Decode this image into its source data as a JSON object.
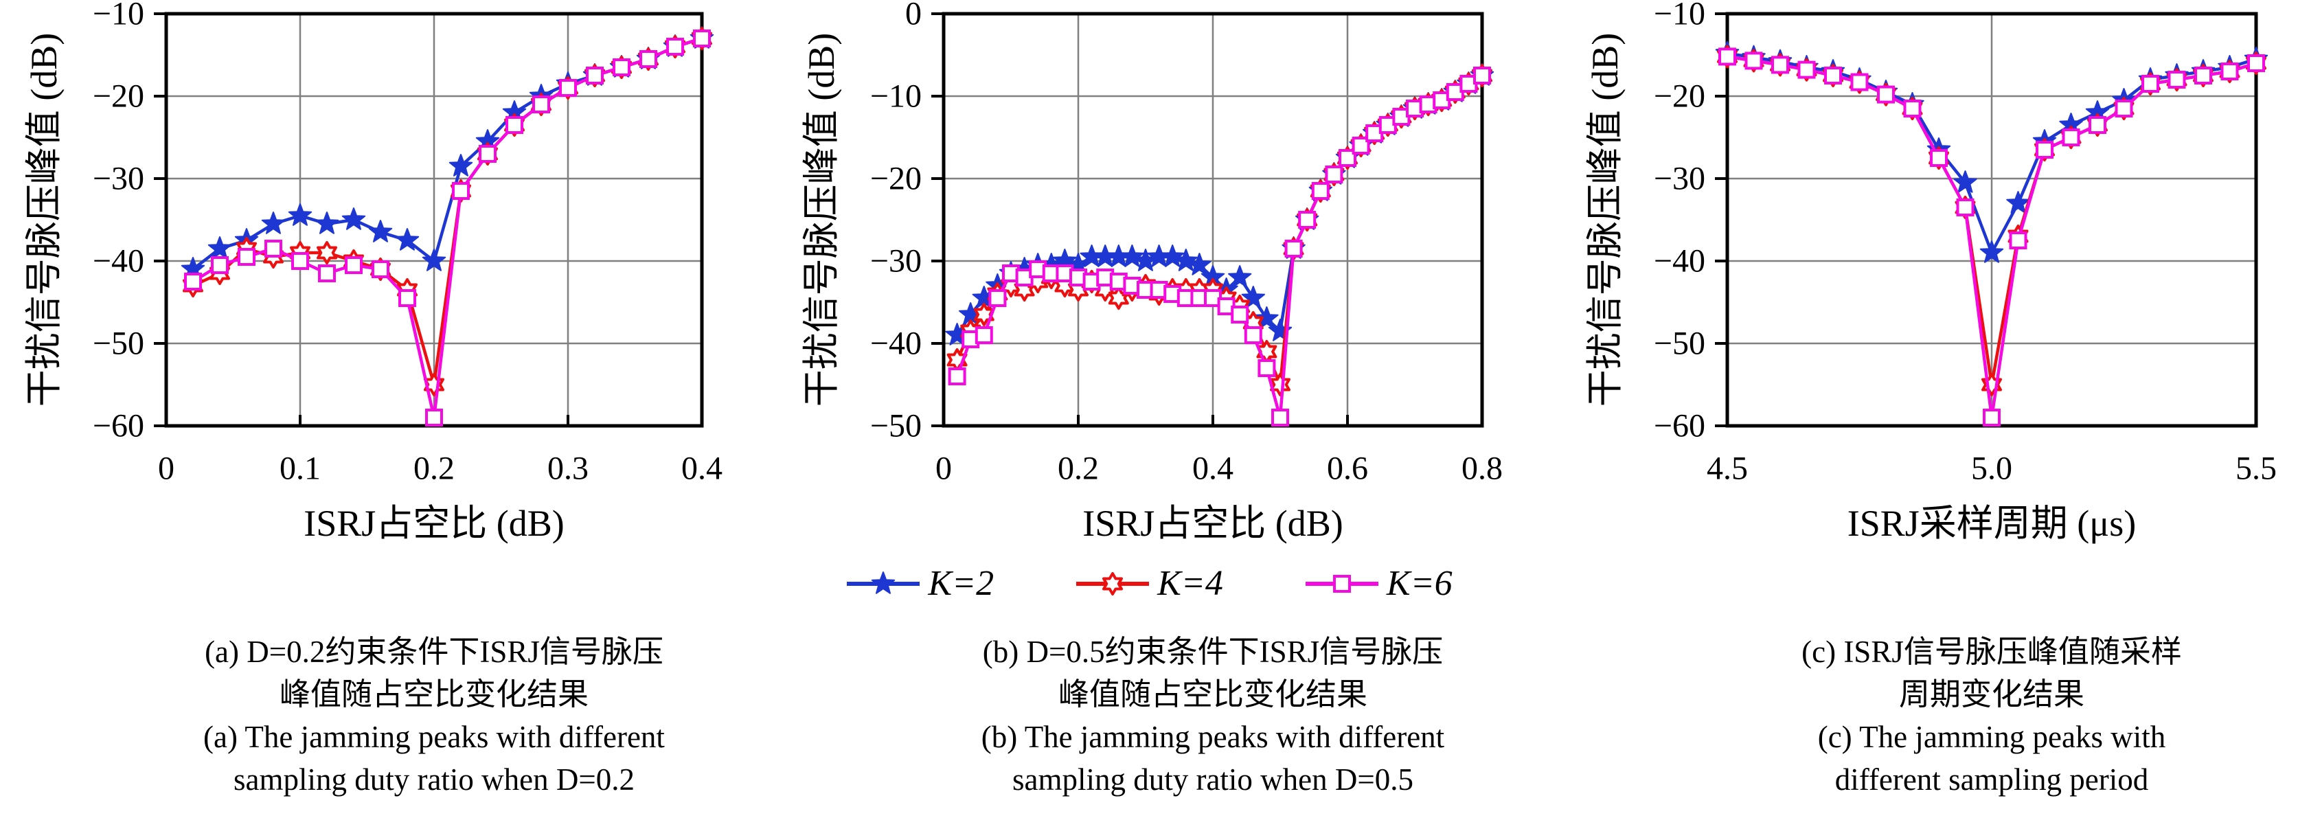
{
  "colors": {
    "k2": "#1E36D2",
    "k4": "#EC1010",
    "k6": "#F50AE1",
    "grid": "#808080",
    "axis": "#000000"
  },
  "legend": {
    "items": [
      {
        "label": "K=2",
        "color_key": "k2",
        "marker": "star5"
      },
      {
        "label": "K=4",
        "color_key": "k4",
        "marker": "star6"
      },
      {
        "label": "K=6",
        "color_key": "k6",
        "marker": "square"
      }
    ]
  },
  "chart_data": [
    {
      "type": "line",
      "panel": "a",
      "xlabel": "ISRJ占空比 (dB)",
      "ylabel": "干扰信号脉压峰值 (dB)",
      "xlim": [
        0,
        0.4
      ],
      "ylim": [
        -60,
        -10
      ],
      "grid": true,
      "xticks": [
        {
          "v": 0,
          "label": "0"
        },
        {
          "v": 0.1,
          "label": "0.1"
        },
        {
          "v": 0.2,
          "label": "0.2"
        },
        {
          "v": 0.3,
          "label": "0.3"
        },
        {
          "v": 0.4,
          "label": "0.4"
        }
      ],
      "yticks": [
        {
          "v": -10,
          "label": "−10"
        },
        {
          "v": -20,
          "label": "−20"
        },
        {
          "v": -30,
          "label": "−30"
        },
        {
          "v": -40,
          "label": "−40"
        },
        {
          "v": -50,
          "label": "−50"
        },
        {
          "v": -60,
          "label": "−60"
        }
      ],
      "x": [
        0.02,
        0.04,
        0.06,
        0.08,
        0.1,
        0.12,
        0.14,
        0.16,
        0.18,
        0.2,
        0.22,
        0.24,
        0.26,
        0.28,
        0.3,
        0.32,
        0.34,
        0.36,
        0.38,
        0.4
      ],
      "series": [
        {
          "name": "K=2",
          "color_key": "k2",
          "marker": "star5",
          "values": [
            -41,
            -38.5,
            -37.5,
            -35.5,
            -34.5,
            -35.5,
            -35,
            -36.5,
            -37.5,
            -40,
            -28.5,
            -25.5,
            -22,
            -20,
            -18.5,
            -17.5,
            -16.5,
            -15.5,
            -14,
            -13
          ]
        },
        {
          "name": "K=4",
          "color_key": "k4",
          "marker": "star6",
          "values": [
            -43,
            -41.5,
            -38.5,
            -39.5,
            -39,
            -39,
            -40,
            -41,
            -43.5,
            -55,
            -31.5,
            -27,
            -23.5,
            -21,
            -19,
            -17.5,
            -16.5,
            -15.5,
            -14,
            -13
          ]
        },
        {
          "name": "K=6",
          "color_key": "k6",
          "marker": "square",
          "values": [
            -42.5,
            -40.5,
            -39.5,
            -38.5,
            -40,
            -41.5,
            -40.5,
            -41,
            -44.5,
            -59,
            -31.5,
            -27,
            -23.5,
            -21,
            -19,
            -17.5,
            -16.5,
            -15.5,
            -14,
            -13
          ]
        }
      ]
    },
    {
      "type": "line",
      "panel": "b",
      "xlabel": "ISRJ占空比 (dB)",
      "ylabel": "干扰信号脉压峰值 (dB)",
      "xlim": [
        0,
        0.8
      ],
      "ylim": [
        -50,
        0
      ],
      "grid": true,
      "xticks": [
        {
          "v": 0,
          "label": "0"
        },
        {
          "v": 0.2,
          "label": "0.2"
        },
        {
          "v": 0.4,
          "label": "0.4"
        },
        {
          "v": 0.6,
          "label": "0.6"
        },
        {
          "v": 0.8,
          "label": "0.8"
        }
      ],
      "yticks": [
        {
          "v": 0,
          "label": "0"
        },
        {
          "v": -10,
          "label": "−10"
        },
        {
          "v": -20,
          "label": "−20"
        },
        {
          "v": -30,
          "label": "−30"
        },
        {
          "v": -40,
          "label": "−40"
        },
        {
          "v": -50,
          "label": "−50"
        }
      ],
      "x": [
        0.02,
        0.04,
        0.06,
        0.08,
        0.1,
        0.12,
        0.14,
        0.16,
        0.18,
        0.2,
        0.22,
        0.24,
        0.26,
        0.28,
        0.3,
        0.32,
        0.34,
        0.36,
        0.38,
        0.4,
        0.42,
        0.44,
        0.46,
        0.48,
        0.5,
        0.52,
        0.54,
        0.56,
        0.58,
        0.6,
        0.62,
        0.64,
        0.66,
        0.68,
        0.7,
        0.72,
        0.74,
        0.76,
        0.78,
        0.8
      ],
      "series": [
        {
          "name": "K=2",
          "color_key": "k2",
          "marker": "star5",
          "values": [
            -39,
            -36.5,
            -34.5,
            -33,
            -31.5,
            -31,
            -30.5,
            -30.5,
            -30,
            -30.5,
            -29.5,
            -29.5,
            -29.5,
            -29.5,
            -30,
            -29.5,
            -29.5,
            -30,
            -30.5,
            -32,
            -33.5,
            -32,
            -34.5,
            -37,
            -38.5,
            -28.5,
            -25,
            -21.5,
            -19.5,
            -17.5,
            -16,
            -14.5,
            -13.5,
            -12.5,
            -11.5,
            -11,
            -10.5,
            -9.5,
            -8.5,
            -7.5
          ]
        },
        {
          "name": "K=4",
          "color_key": "k4",
          "marker": "star6",
          "values": [
            -42,
            -38.5,
            -36.5,
            -34,
            -33,
            -33.5,
            -32.5,
            -32,
            -33,
            -33.5,
            -32.5,
            -33.5,
            -34.5,
            -33.5,
            -33,
            -34,
            -33.5,
            -33.5,
            -33.5,
            -33.5,
            -34.5,
            -35.5,
            -37.5,
            -41,
            -45,
            -28.5,
            -25,
            -21.5,
            -19.5,
            -17.5,
            -16,
            -14.5,
            -13.5,
            -12.5,
            -11.5,
            -11,
            -10.5,
            -9.5,
            -8.5,
            -7.5
          ]
        },
        {
          "name": "K=6",
          "color_key": "k6",
          "marker": "square",
          "values": [
            -44,
            -39.5,
            -39,
            -34.5,
            -31.5,
            -32,
            -31,
            -31.5,
            -31.5,
            -32,
            -32.5,
            -32,
            -32.5,
            -33,
            -33.5,
            -33.5,
            -34,
            -34.5,
            -34.5,
            -34.5,
            -35.5,
            -36.5,
            -39,
            -43,
            -49,
            -28.5,
            -25,
            -21.5,
            -19.5,
            -17.5,
            -16,
            -14.5,
            -13.5,
            -12.5,
            -11.5,
            -11,
            -10.5,
            -9.5,
            -8.5,
            -7.5
          ]
        }
      ]
    },
    {
      "type": "line",
      "panel": "c",
      "xlabel": "ISRJ采样周期 (μs)",
      "ylabel": "干扰信号脉压峰值 (dB)",
      "xlim": [
        4.5,
        5.5
      ],
      "ylim": [
        -60,
        -10
      ],
      "grid": true,
      "xticks": [
        {
          "v": 4.5,
          "label": "4.5"
        },
        {
          "v": 5.0,
          "label": "5.0"
        },
        {
          "v": 5.5,
          "label": "5.5"
        }
      ],
      "yticks": [
        {
          "v": -10,
          "label": "−10"
        },
        {
          "v": -20,
          "label": "−20"
        },
        {
          "v": -30,
          "label": "−30"
        },
        {
          "v": -40,
          "label": "−40"
        },
        {
          "v": -50,
          "label": "−50"
        },
        {
          "v": -60,
          "label": "−60"
        }
      ],
      "x": [
        4.5,
        4.55,
        4.6,
        4.65,
        4.7,
        4.75,
        4.8,
        4.85,
        4.9,
        4.95,
        5.0,
        5.05,
        5.1,
        5.15,
        5.2,
        5.25,
        5.3,
        5.35,
        5.4,
        5.45,
        5.5
      ],
      "series": [
        {
          "name": "K=2",
          "color_key": "k2",
          "marker": "star5",
          "values": [
            -14.8,
            -15.3,
            -15.8,
            -16.5,
            -17,
            -18,
            -19.5,
            -21,
            -26.5,
            -30.5,
            -39,
            -33,
            -25.5,
            -23.5,
            -22,
            -20.5,
            -18,
            -17.5,
            -17,
            -16.5,
            -15.5
          ]
        },
        {
          "name": "K=4",
          "color_key": "k4",
          "marker": "star6",
          "values": [
            -15.2,
            -15.7,
            -16.2,
            -16.8,
            -17.5,
            -18.3,
            -19.8,
            -21.5,
            -27.5,
            -33.5,
            -55,
            -37,
            -26.5,
            -25,
            -23.5,
            -21.5,
            -18.5,
            -18,
            -17.5,
            -17,
            -16
          ]
        },
        {
          "name": "K=6",
          "color_key": "k6",
          "marker": "square",
          "values": [
            -15.2,
            -15.7,
            -16.2,
            -16.8,
            -17.5,
            -18.3,
            -19.8,
            -21.5,
            -27.5,
            -33.5,
            -59,
            -37.5,
            -26.5,
            -25,
            -23.5,
            -21.5,
            -18.5,
            -18,
            -17.5,
            -17,
            -16
          ]
        }
      ]
    }
  ],
  "captions": [
    {
      "lines": [
        "(a) D=0.2约束条件下ISRJ信号脉压",
        "峰值随占空比变化结果",
        "(a) The jamming peaks with different",
        "sampling duty ratio when D=0.2"
      ]
    },
    {
      "lines": [
        "(b) D=0.5约束条件下ISRJ信号脉压",
        "峰值随占空比变化结果",
        "(b) The jamming peaks with different",
        "sampling duty ratio when D=0.5"
      ]
    },
    {
      "lines": [
        "(c) ISRJ信号脉压峰值随采样",
        "周期变化结果",
        "(c) The jamming peaks with",
        "different sampling period"
      ]
    }
  ]
}
